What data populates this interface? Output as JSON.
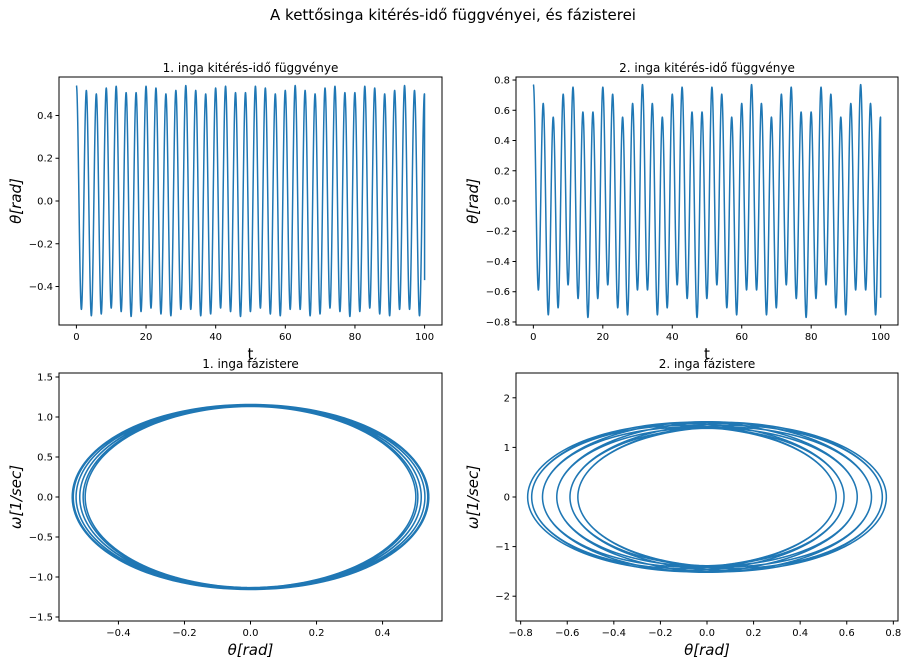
{
  "figure": {
    "suptitle": "A kettősinga kitérés-idő függvényei, és fázisterei"
  },
  "chart_data": [
    {
      "type": "line",
      "title": "1. inga kitérés-idő függvénye",
      "xlabel": "t",
      "ylabel": "θ[rad]",
      "xlim": [
        -5,
        105
      ],
      "ylim": [
        -0.58,
        0.58
      ],
      "xticks": [
        0,
        20,
        40,
        60,
        80,
        100
      ],
      "yticks": [
        -0.4,
        -0.2,
        0.0,
        0.2,
        0.4
      ],
      "xtick_labels": [
        "0",
        "20",
        "40",
        "60",
        "80",
        "100"
      ],
      "ytick_labels": [
        "−0.4",
        "−0.2",
        "0.0",
        "0.2",
        "0.4"
      ],
      "series": [
        {
          "model": {
            "a1": 0.52,
            "a2": 0.02,
            "w1": 2.2,
            "w2": 0.6,
            "t0": 0,
            "t1": 100,
            "end": -0.37
          }
        }
      ]
    },
    {
      "type": "line",
      "title": "2. inga kitérés-idő függvénye",
      "xlabel": "t",
      "ylabel": "θ[rad]",
      "xlim": [
        -5,
        105
      ],
      "ylim": [
        -0.82,
        0.82
      ],
      "xticks": [
        0,
        20,
        40,
        60,
        80,
        100
      ],
      "yticks": [
        -0.8,
        -0.6,
        -0.4,
        -0.2,
        0.0,
        0.2,
        0.4,
        0.6,
        0.8
      ],
      "xtick_labels": [
        "0",
        "20",
        "40",
        "60",
        "80",
        "100"
      ],
      "ytick_labels": [
        "−0.8",
        "−0.6",
        "−0.4",
        "−0.2",
        "0.0",
        "0.2",
        "0.4",
        "0.6",
        "0.8"
      ],
      "series": [
        {
          "model": {
            "a1": 0.66,
            "a2": 0.11,
            "w1": 2.2,
            "w2": 0.6,
            "t0": 0,
            "t1": 100,
            "end": -0.64
          }
        }
      ]
    },
    {
      "type": "line",
      "title": "1. inga fázistere",
      "xlabel": "θ[rad]",
      "ylabel": "ω[1/sec]",
      "xlim": [
        -0.58,
        0.58
      ],
      "ylim": [
        -1.55,
        1.55
      ],
      "xticks": [
        -0.4,
        -0.2,
        0.0,
        0.2,
        0.4
      ],
      "yticks": [
        -1.5,
        -1.0,
        -0.5,
        0.0,
        0.5,
        1.0,
        1.5
      ],
      "xtick_labels": [
        "−0.4",
        "−0.2",
        "0.0",
        "0.2",
        "0.4"
      ],
      "ytick_labels": [
        "−1.5",
        "−1.0",
        "−0.5",
        "0.0",
        "0.5",
        "1.0",
        "1.5"
      ],
      "series": [
        {
          "model": {
            "a1": 0.52,
            "a2": 0.02,
            "w1": 2.2,
            "w2": 0.6,
            "t0": 0,
            "t1": 100
          }
        }
      ]
    },
    {
      "type": "line",
      "title": "2. inga fázistere",
      "xlabel": "θ[rad]",
      "ylabel": "ω[1/sec]",
      "xlim": [
        -0.82,
        0.82
      ],
      "ylim": [
        -2.5,
        2.5
      ],
      "xticks": [
        -0.8,
        -0.6,
        -0.4,
        -0.2,
        0.0,
        0.2,
        0.4,
        0.6,
        0.8
      ],
      "yticks": [
        -2,
        -1,
        0,
        1,
        2
      ],
      "xtick_labels": [
        "−0.8",
        "−0.6",
        "−0.4",
        "−0.2",
        "0.0",
        "0.2",
        "0.4",
        "0.6",
        "0.8"
      ],
      "ytick_labels": [
        "−2",
        "−1",
        "0",
        "1",
        "2"
      ],
      "series": [
        {
          "model": {
            "a1": 0.66,
            "a2": 0.11,
            "w1": 2.2,
            "w2": 0.6,
            "t0": 0,
            "t1": 100
          }
        }
      ]
    }
  ]
}
